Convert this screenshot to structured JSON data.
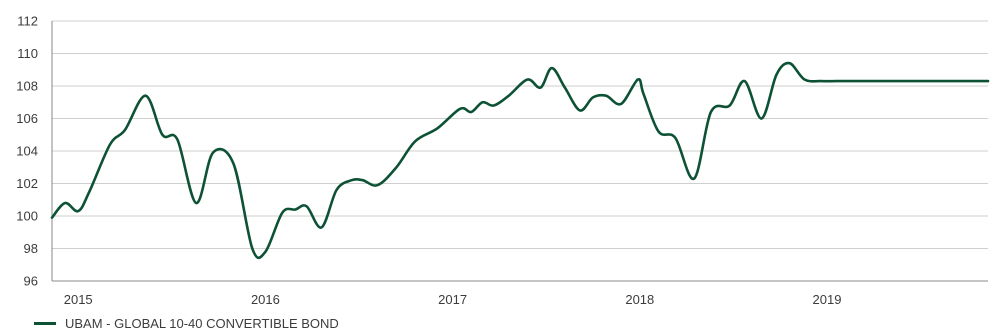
{
  "chart_data": {
    "type": "line",
    "title": "",
    "xlabel": "",
    "ylabel": "",
    "ylim": [
      96,
      112
    ],
    "y_ticks": [
      96,
      98,
      100,
      102,
      104,
      106,
      108,
      110,
      112
    ],
    "x_ticks": [
      "2015",
      "2016",
      "2017",
      "2018",
      "2019"
    ],
    "xlim": [
      2014.86,
      2019.86
    ],
    "grid": "horizontal",
    "legend_position": "bottom-left",
    "series": [
      {
        "name": "UBAM - GLOBAL 10-40 CONVERTIBLE BOND",
        "color": "#0e5236",
        "x": [
          2014.86,
          2014.93,
          2015.0,
          2015.06,
          2015.17,
          2015.25,
          2015.36,
          2015.45,
          2015.53,
          2015.63,
          2015.72,
          2015.83,
          2015.93,
          2016.0,
          2016.09,
          2016.16,
          2016.22,
          2016.3,
          2016.38,
          2016.46,
          2016.52,
          2016.6,
          2016.7,
          2016.8,
          2016.92,
          2017.04,
          2017.1,
          2017.16,
          2017.22,
          2017.3,
          2017.4,
          2017.47,
          2017.53,
          2017.6,
          2017.68,
          2017.75,
          2017.82,
          2017.9,
          2017.99,
          2018.02,
          2018.1,
          2018.19,
          2018.29,
          2018.38,
          2018.48,
          2018.56,
          2018.65,
          2018.73,
          2018.8,
          2018.88,
          2018.97,
          2019.05,
          2019.13,
          2019.22,
          2019.3,
          2019.39,
          2019.47,
          2019.57,
          2019.63,
          2019.71,
          2019.86
        ],
        "values": [
          99.9,
          100.8,
          100.3,
          101.5,
          104.4,
          105.3,
          107.4,
          105.0,
          104.7,
          100.8,
          103.9,
          103.2,
          98.0,
          97.8,
          100.2,
          100.4,
          100.6,
          99.3,
          101.6,
          102.2,
          102.2,
          101.9,
          103.0,
          104.6,
          105.4,
          106.6,
          106.4,
          107.0,
          106.8,
          107.4,
          108.4,
          107.9,
          109.1,
          107.9,
          106.5,
          107.3,
          107.4,
          106.9,
          108.4,
          107.5,
          105.2,
          104.8,
          102.3,
          106.4,
          106.8,
          108.3,
          106.0,
          108.7,
          109.4,
          108.4,
          108.3,
          108.3,
          108.3,
          108.3,
          108.3,
          108.3,
          108.3,
          108.3,
          108.3,
          108.3,
          108.3
        ]
      }
    ]
  }
}
